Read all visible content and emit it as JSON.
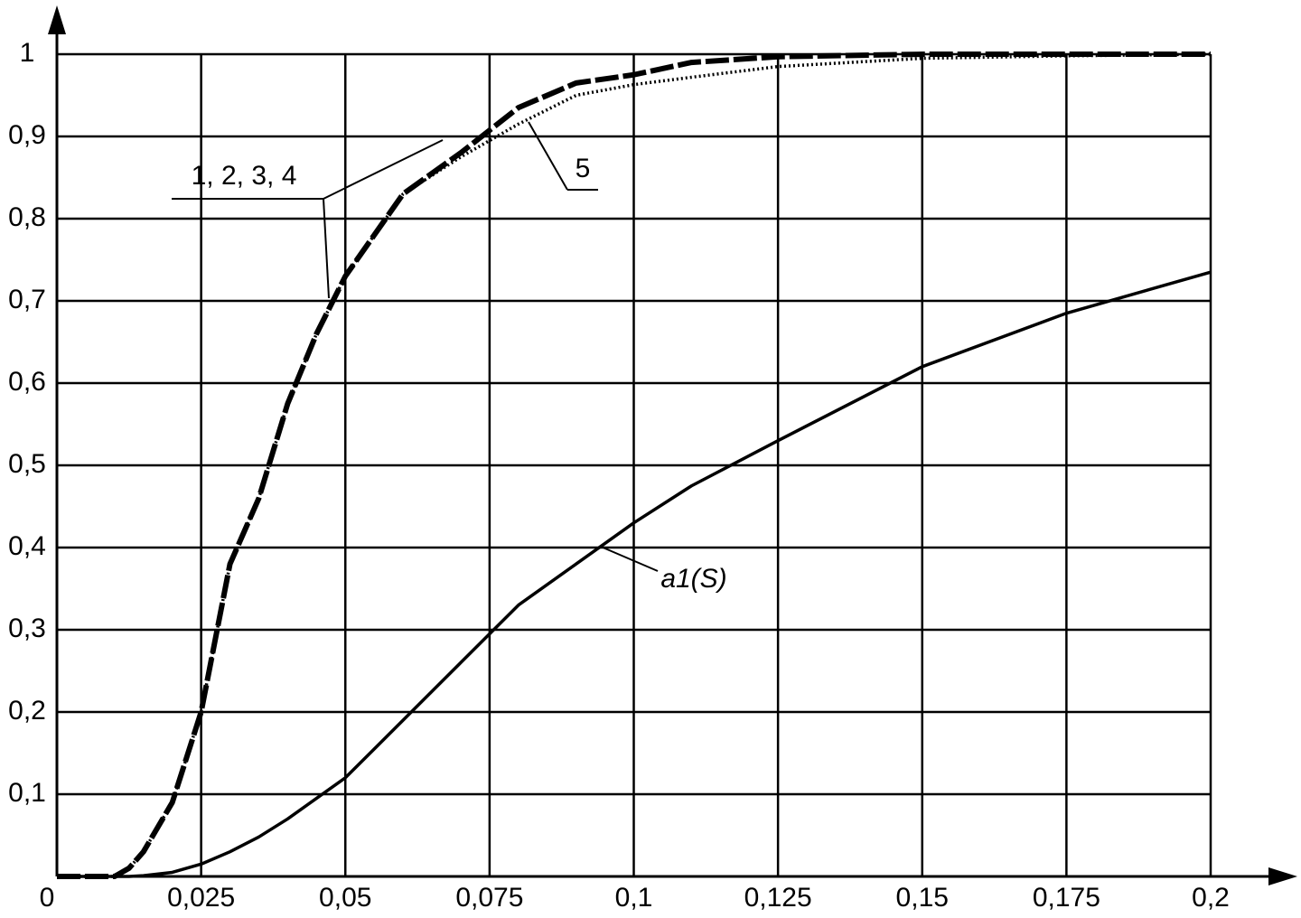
{
  "chart_data": {
    "type": "line",
    "x": [
      0,
      0.01,
      0.0125,
      0.015,
      0.02,
      0.025,
      0.03,
      0.035,
      0.04,
      0.045,
      0.05,
      0.055,
      0.06,
      0.07,
      0.08,
      0.09,
      0.1,
      0.11,
      0.125,
      0.15,
      0.175,
      0.2
    ],
    "series": [
      {
        "name": "1, 2, 3, 4",
        "color": "#000000",
        "values": [
          0,
          0,
          0.01,
          0.03,
          0.09,
          0.2,
          0.38,
          0.46,
          0.575,
          0.66,
          0.73,
          0.78,
          0.83,
          0.88,
          0.935,
          0.965,
          0.975,
          0.99,
          0.997,
          1,
          1,
          1
        ]
      },
      {
        "name": "5",
        "color": "#000000",
        "values": [
          0,
          0,
          0.01,
          0.03,
          0.09,
          0.2,
          0.38,
          0.46,
          0.575,
          0.66,
          0.73,
          0.78,
          0.83,
          0.875,
          0.915,
          0.95,
          0.963,
          0.972,
          0.985,
          0.995,
          0.998,
          1
        ]
      },
      {
        "name": "a1(S)",
        "color": "#000000",
        "values": [
          0,
          0,
          0,
          0.001,
          0.005,
          0.015,
          0.03,
          0.048,
          0.07,
          0.095,
          0.12,
          0.155,
          0.19,
          0.26,
          0.33,
          0.38,
          0.43,
          0.475,
          0.53,
          0.62,
          0.685,
          0.735
        ]
      }
    ],
    "xlim": [
      0,
      0.2
    ],
    "ylim": [
      0,
      1
    ],
    "xticks": [
      0,
      {
        "value": 0.025,
        "label": "0,025"
      },
      {
        "value": 0.05,
        "label": "0,05"
      },
      {
        "value": 0.075,
        "label": "0,075"
      },
      {
        "value": 0.1,
        "label": "0,1"
      },
      {
        "value": 0.125,
        "label": "0,125"
      },
      {
        "value": 0.15,
        "label": "0,15"
      },
      {
        "value": 0.175,
        "label": "0,175"
      },
      {
        "value": 0.2,
        "label": "0,2"
      }
    ],
    "yticks": [
      {
        "value": 0.1,
        "label": "0,1"
      },
      {
        "value": 0.2,
        "label": "0,2"
      },
      {
        "value": 0.3,
        "label": "0,3"
      },
      {
        "value": 0.4,
        "label": "0,4"
      },
      {
        "value": 0.5,
        "label": "0,5"
      },
      {
        "value": 0.6,
        "label": "0,6"
      },
      {
        "value": 0.7,
        "label": "0,7"
      },
      {
        "value": 0.8,
        "label": "0,8"
      },
      {
        "value": 0.9,
        "label": "0,9"
      },
      1
    ],
    "grid": true
  }
}
